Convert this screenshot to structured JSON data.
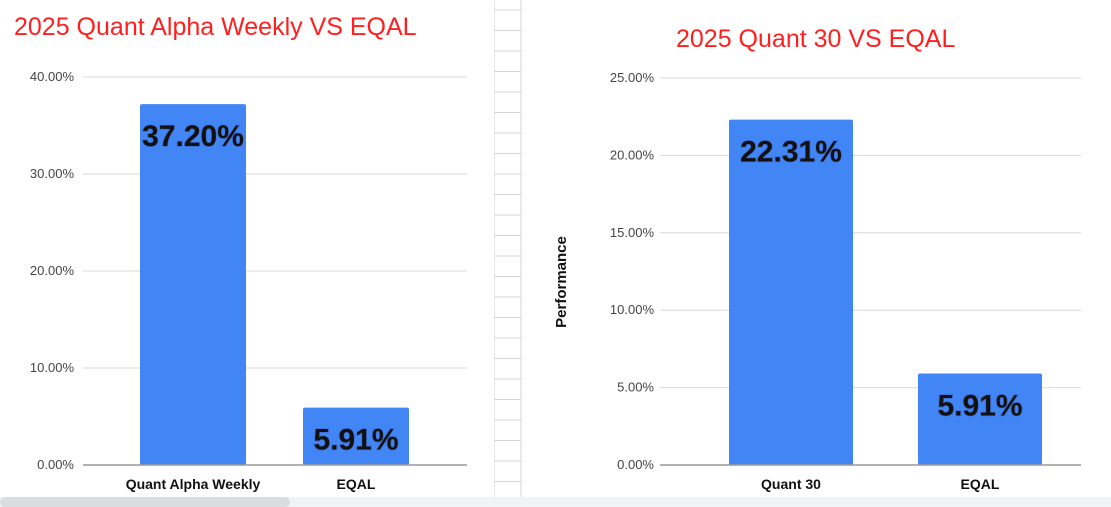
{
  "colors": {
    "bar": "#4285f4",
    "title": "#ff1f1f",
    "grid": "#d9d9d9",
    "axis_line": "#999999",
    "sheet_grid": "#d4d4d4"
  },
  "chart_data": [
    {
      "type": "bar",
      "title": "2025 Quant Alpha Weekly VS EQAL",
      "xlabel": "",
      "ylabel": "",
      "categories": [
        "Quant Alpha Weekly",
        "EQAL"
      ],
      "values": [
        37.2,
        5.91
      ],
      "data_labels": [
        "37.20%",
        "5.91%"
      ],
      "ylim": [
        0,
        40
      ],
      "yticks": [
        0,
        10,
        20,
        30,
        40
      ],
      "ytick_labels": [
        "0.00%",
        "10.00%",
        "20.00%",
        "30.00%",
        "40.00%"
      ],
      "grid": true,
      "legend": "none"
    },
    {
      "type": "bar",
      "title": "2025 Quant 30 VS EQAL",
      "xlabel": "",
      "ylabel": "Performance",
      "categories": [
        "Quant 30",
        "EQAL"
      ],
      "values": [
        22.31,
        5.91
      ],
      "data_labels": [
        "22.31%",
        "5.91%"
      ],
      "ylim": [
        0,
        25
      ],
      "yticks": [
        0,
        5,
        10,
        15,
        20,
        25
      ],
      "ytick_labels": [
        "0.00%",
        "5.00%",
        "10.00%",
        "15.00%",
        "20.00%",
        "25.00%"
      ],
      "grid": true,
      "legend": "none"
    }
  ]
}
